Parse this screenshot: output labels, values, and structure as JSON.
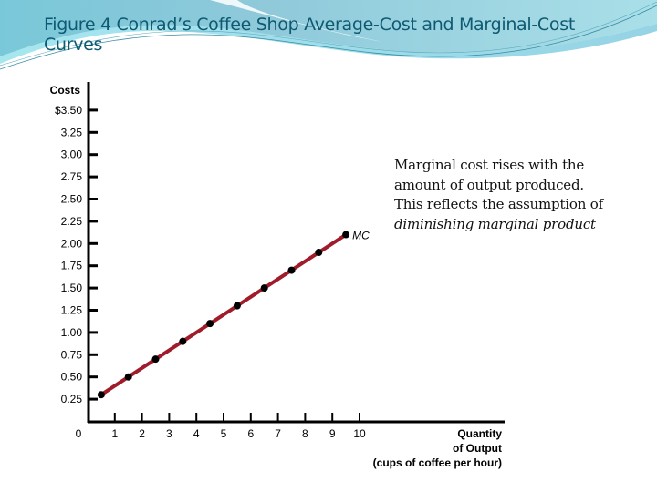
{
  "slide": {
    "title": "Figure 4 Conrad’s Coffee Shop Average-Cost and Marginal-Cost Curves",
    "title_line1": "Figure 4 Conrad’s Coffee Shop Average-Cost and Marginal-Cost",
    "title_line2": "Curves",
    "accent_color": "#0e5a72",
    "header_colors": [
      "#7cc3d6",
      "#a6dce6",
      "#3fb6c9"
    ]
  },
  "annotation": {
    "line1": "Marginal cost rises with the",
    "line2": "amount of output produced.",
    "line3": "This reflects the assumption of",
    "line4_italic": "diminishing marginal product"
  },
  "chart_data": {
    "type": "line",
    "title": "Figure 4 Conrad’s Coffee Shop Average-Cost and Marginal-Cost Curves",
    "xlabel": "Quantity of Output (cups of coffee per hour)",
    "xlabel_lines": [
      "Quantity",
      "of Output",
      "(cups of coffee per hour)"
    ],
    "ylabel": "Costs",
    "x_ticks": [
      "0",
      "1",
      "2",
      "3",
      "4",
      "5",
      "6",
      "7",
      "8",
      "9",
      "10"
    ],
    "y_ticks": [
      "0.25",
      "0.50",
      "0.75",
      "1.00",
      "1.25",
      "1.50",
      "1.75",
      "2.00",
      "2.25",
      "2.50",
      "2.75",
      "3.00",
      "3.25",
      "$3.50"
    ],
    "xlim": [
      0,
      10
    ],
    "ylim": [
      0,
      3.5
    ],
    "grid": false,
    "series": [
      {
        "name": "MC",
        "color": "#a01c2a",
        "marker_color": "#000000",
        "x": [
          0.5,
          1.5,
          2.5,
          3.5,
          4.5,
          5.5,
          6.5,
          7.5,
          8.5,
          9.5
        ],
        "values": [
          0.3,
          0.5,
          0.7,
          0.9,
          1.1,
          1.3,
          1.5,
          1.7,
          1.9,
          2.1
        ]
      }
    ]
  }
}
